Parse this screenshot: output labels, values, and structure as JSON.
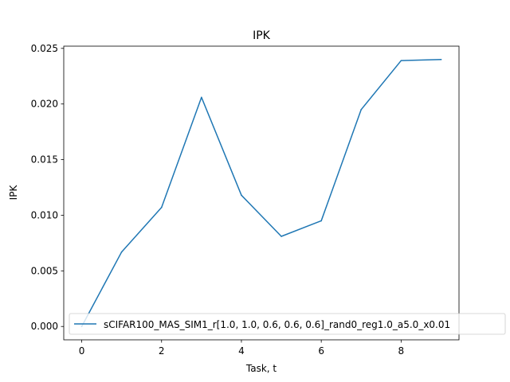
{
  "chart_data": {
    "type": "line",
    "title": "IPK",
    "xlabel": "Task, t",
    "ylabel": "IPK",
    "xlim": [
      -0.45,
      9.45
    ],
    "ylim": [
      -0.0012,
      0.0252
    ],
    "x_ticks": [
      0,
      2,
      4,
      6,
      8
    ],
    "x_tick_labels": [
      "0",
      "2",
      "4",
      "6",
      "8"
    ],
    "y_ticks": [
      0.0,
      0.005,
      0.01,
      0.015,
      0.02,
      0.025
    ],
    "y_tick_labels": [
      "0.000",
      "0.005",
      "0.010",
      "0.015",
      "0.020",
      "0.025"
    ],
    "grid": false,
    "legend_position": "lower-left",
    "series": [
      {
        "name": "sCIFAR100_MAS_SIM1_r[1.0, 1.0, 0.6, 0.6, 0.6]_rand0_reg1.0_a5.0_x0.01",
        "color": "#1f77b4",
        "x": [
          0,
          1,
          2,
          3,
          4,
          5,
          6,
          7,
          8,
          9
        ],
        "y": [
          0.0,
          0.0067,
          0.0107,
          0.0206,
          0.0118,
          0.0081,
          0.0095,
          0.0195,
          0.0239,
          0.024
        ]
      }
    ]
  }
}
